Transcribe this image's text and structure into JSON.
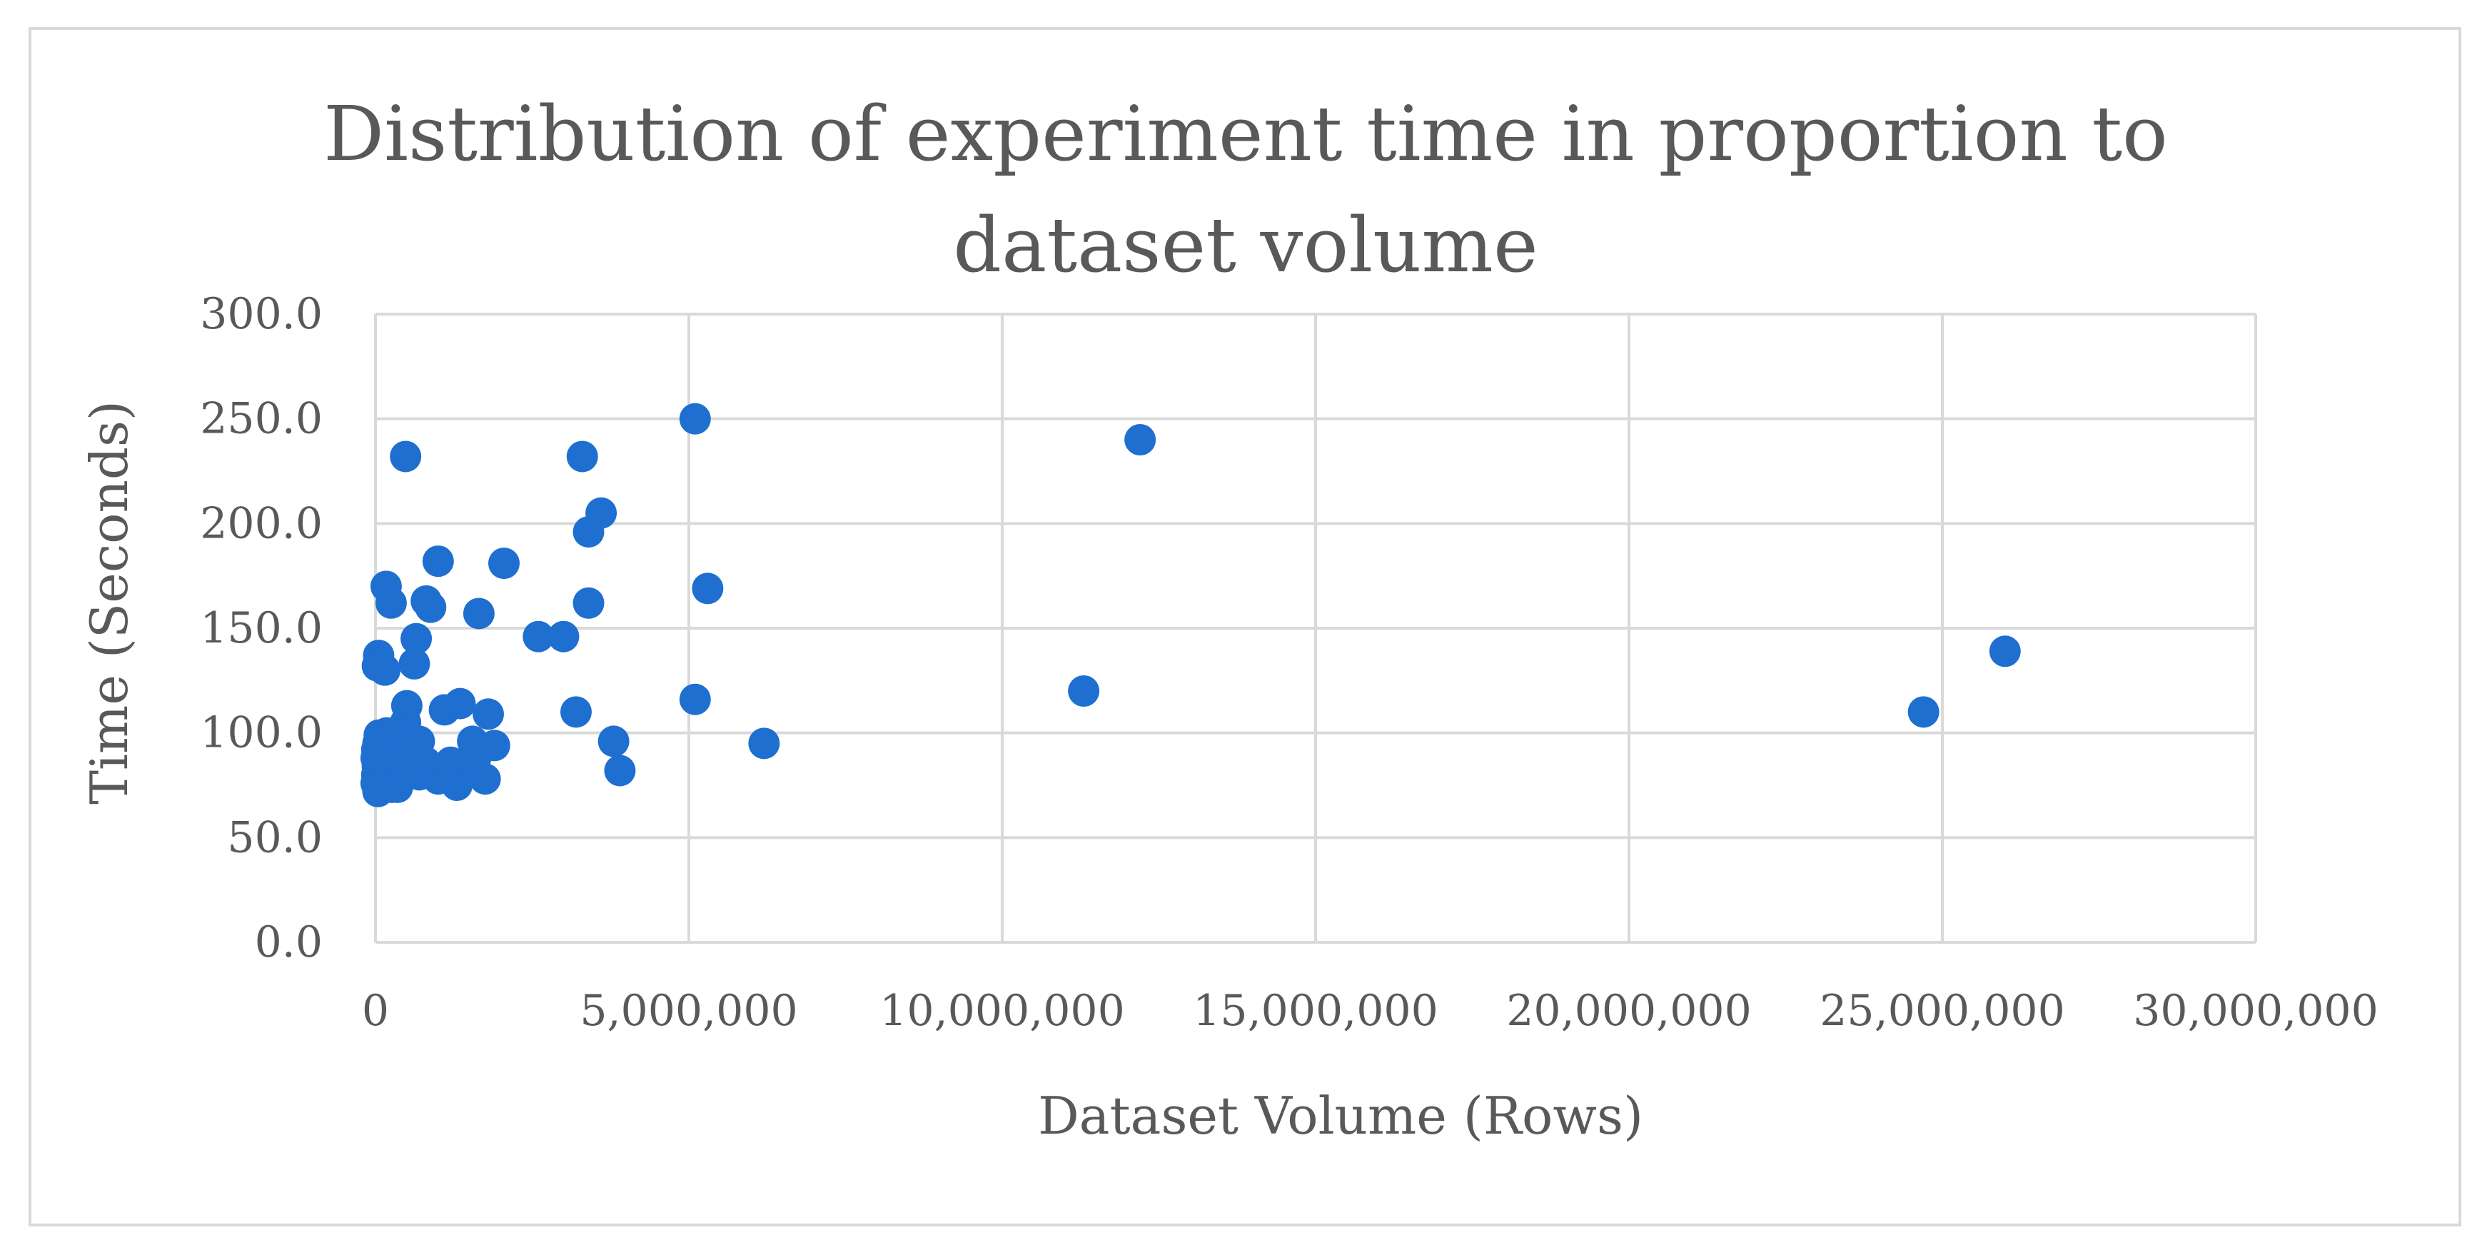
{
  "chart_data": {
    "type": "scatter",
    "title_line1": "Distribution of experiment time in proportion to",
    "title_line2": "dataset volume",
    "xlabel": "Dataset Volume (Rows)",
    "ylabel": "Time (Seconds)",
    "xlim": [
      0,
      30000000
    ],
    "ylim": [
      0,
      300
    ],
    "x_ticks": [
      0,
      5000000,
      10000000,
      15000000,
      20000000,
      25000000,
      30000000
    ],
    "x_tick_labels": [
      "0",
      "5,000,000",
      "10,000,000",
      "15,000,000",
      "20,000,000",
      "25,000,000",
      "30,000,000"
    ],
    "y_ticks": [
      0,
      50,
      100,
      150,
      200,
      250,
      300
    ],
    "y_tick_labels": [
      "0.0",
      "50.0",
      "100.0",
      "150.0",
      "200.0",
      "250.0",
      "300.0"
    ],
    "grid": true,
    "legend": "none",
    "marker_color": "#1f6fd1",
    "series": [
      {
        "points": [
          [
            5100000,
            250
          ],
          [
            12200000,
            240
          ],
          [
            26000000,
            139
          ],
          [
            24700000,
            110
          ],
          [
            11300000,
            120
          ],
          [
            6200000,
            95
          ],
          [
            5100000,
            116
          ],
          [
            5300000,
            169
          ],
          [
            3800000,
            96
          ],
          [
            3900000,
            82
          ],
          [
            3600000,
            205
          ],
          [
            3400000,
            196
          ],
          [
            3300000,
            232
          ],
          [
            3400000,
            162
          ],
          [
            3000000,
            146
          ],
          [
            2600000,
            146
          ],
          [
            3200000,
            110
          ],
          [
            2050000,
            181
          ],
          [
            1650000,
            157
          ],
          [
            1800000,
            109
          ],
          [
            1900000,
            94
          ],
          [
            1750000,
            78
          ],
          [
            1350000,
            114
          ],
          [
            1450000,
            83
          ],
          [
            1300000,
            75
          ],
          [
            1100000,
            111
          ],
          [
            1000000,
            182
          ],
          [
            880000,
            160
          ],
          [
            810000,
            163
          ],
          [
            650000,
            145
          ],
          [
            620000,
            133
          ],
          [
            480000,
            232
          ],
          [
            500000,
            113
          ],
          [
            480000,
            105
          ],
          [
            450000,
            97
          ],
          [
            390000,
            91
          ],
          [
            340000,
            85
          ],
          [
            300000,
            80
          ],
          [
            260000,
            74
          ],
          [
            250000,
            162
          ],
          [
            170000,
            170
          ],
          [
            150000,
            130
          ],
          [
            50000,
            137
          ],
          [
            30000,
            132
          ],
          [
            60000,
            99
          ],
          [
            40000,
            95
          ],
          [
            20000,
            92
          ],
          [
            10000,
            88
          ],
          [
            30000,
            84
          ],
          [
            20000,
            80
          ],
          [
            10000,
            76
          ],
          [
            40000,
            72
          ],
          [
            80000,
            96
          ],
          [
            100000,
            90
          ],
          [
            130000,
            86
          ],
          [
            150000,
            82
          ],
          [
            200000,
            78
          ],
          [
            220000,
            93
          ],
          [
            280000,
            88
          ],
          [
            330000,
            98
          ],
          [
            560000,
            90
          ],
          [
            600000,
            84
          ],
          [
            700000,
            80
          ],
          [
            800000,
            86
          ],
          [
            950000,
            82
          ],
          [
            1000000,
            78
          ],
          [
            1150000,
            80
          ],
          [
            1200000,
            86
          ],
          [
            1600000,
            88
          ],
          [
            1550000,
            96
          ],
          [
            700000,
            96
          ],
          [
            400000,
            100
          ],
          [
            350000,
            74
          ],
          [
            180000,
            100
          ],
          [
            90000,
            74
          ]
        ]
      }
    ]
  }
}
